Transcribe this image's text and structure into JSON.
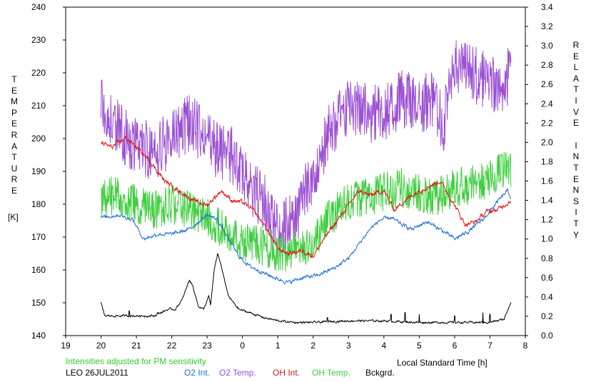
{
  "chart_data": {
    "type": "line",
    "left_axis_label": "TEMPERATURE",
    "left_axis_unit": "[K]",
    "right_axis_label": "RELATIVE INTENSITY",
    "xlabel": "Local Standard Time [h]",
    "note": "Intensities adjusted for PM sensitivity",
    "station_date": "LEO 26JUL2011",
    "x_ticks": [
      "19",
      "20",
      "21",
      "22",
      "23",
      "0",
      "1",
      "2",
      "3",
      "4",
      "5",
      "6",
      "7",
      "8"
    ],
    "y_left_ticks": [
      "140",
      "150",
      "160",
      "170",
      "180",
      "190",
      "200",
      "210",
      "220",
      "230",
      "240"
    ],
    "y_right_ticks": [
      "0.0",
      "0.2",
      "0.4",
      "0.6",
      "0.8",
      "1.0",
      "1.2",
      "1.4",
      "1.6",
      "1.8",
      "2.0",
      "2.2",
      "2.4",
      "2.6",
      "2.8",
      "3.0",
      "3.2",
      "3.4"
    ],
    "xlim": [
      19,
      32
    ],
    "ylim_left": [
      140,
      240
    ],
    "ylim_right": [
      0,
      3.4
    ],
    "series": [
      {
        "name": "O2 Int.",
        "color": "#1f6fd6",
        "axis": "right",
        "noise": 0.025,
        "x": [
          20.0,
          20.5,
          20.9,
          21.2,
          21.6,
          22.0,
          22.5,
          23.0,
          23.3,
          23.6,
          23.9,
          24.2,
          24.6,
          24.9,
          25.3,
          25.7,
          26.1,
          26.6,
          27.0,
          27.3,
          27.6,
          27.9,
          28.2,
          28.5,
          28.8,
          29.2,
          29.6,
          30.0,
          30.4,
          30.8,
          31.2,
          31.5,
          31.6
        ],
        "y": [
          1.22,
          1.25,
          1.2,
          1.0,
          1.05,
          1.05,
          1.1,
          1.25,
          1.2,
          1.0,
          0.82,
          0.72,
          0.65,
          0.6,
          0.55,
          0.6,
          0.62,
          0.7,
          0.8,
          0.95,
          1.1,
          1.2,
          1.22,
          1.15,
          1.1,
          1.18,
          1.1,
          1.0,
          1.08,
          1.2,
          1.38,
          1.5,
          1.42
        ]
      },
      {
        "name": "O2 Temp.",
        "color": "#9b4fd4",
        "axis": "left",
        "noise": 9,
        "x": [
          20.0,
          20.3,
          20.7,
          21.0,
          21.5,
          22.0,
          22.5,
          23.0,
          23.3,
          23.7,
          24.0,
          24.4,
          24.7,
          25.0,
          25.5,
          26.0,
          26.5,
          27.0,
          27.5,
          28.0,
          28.5,
          29.0,
          29.3,
          29.7,
          30.0,
          30.4,
          30.8,
          31.2,
          31.6
        ],
        "y": [
          212,
          205,
          200,
          198,
          196,
          200,
          205,
          200,
          196,
          195,
          190,
          183,
          180,
          172,
          175,
          190,
          203,
          210,
          208,
          207,
          212,
          210,
          212,
          205,
          222,
          220,
          218,
          215,
          220
        ]
      },
      {
        "name": "OH Int.",
        "color": "#e01414",
        "axis": "right",
        "noise": 0.03,
        "x": [
          20.0,
          20.3,
          20.7,
          21.0,
          21.4,
          21.8,
          22.2,
          22.6,
          23.0,
          23.4,
          23.7,
          24.0,
          24.3,
          24.7,
          25.0,
          25.3,
          25.7,
          26.0,
          26.3,
          26.7,
          27.0,
          27.3,
          27.6,
          28.0,
          28.3,
          28.6,
          29.0,
          29.3,
          29.6,
          30.0,
          30.3,
          30.6,
          30.9,
          31.2,
          31.6
        ],
        "y": [
          2.0,
          1.95,
          2.05,
          1.95,
          1.8,
          1.6,
          1.5,
          1.4,
          1.35,
          1.5,
          1.4,
          1.38,
          1.3,
          1.1,
          0.9,
          0.85,
          0.88,
          0.82,
          1.0,
          1.2,
          1.35,
          1.5,
          1.45,
          1.5,
          1.3,
          1.4,
          1.5,
          1.55,
          1.6,
          1.35,
          1.15,
          1.18,
          1.28,
          1.3,
          1.4
        ]
      },
      {
        "name": "OH Temp.",
        "color": "#3fcf3f",
        "axis": "left",
        "noise": 6,
        "x": [
          20.0,
          20.5,
          21.0,
          21.5,
          22.0,
          22.5,
          23.0,
          23.5,
          24.0,
          24.4,
          24.8,
          25.2,
          25.6,
          26.0,
          26.4,
          26.8,
          27.2,
          27.6,
          28.0,
          28.5,
          29.0,
          29.5,
          30.0,
          30.5,
          31.0,
          31.3,
          31.6
        ],
        "y": [
          182,
          183,
          180,
          178,
          180,
          178,
          176,
          172,
          168,
          168,
          166,
          165,
          167,
          168,
          175,
          180,
          182,
          182,
          184,
          185,
          183,
          182,
          185,
          186,
          188,
          190,
          190
        ]
      },
      {
        "name": "Bckgrd.",
        "color": "#000000",
        "axis": "left",
        "noise": 0.4,
        "x": [
          20.0,
          20.1,
          20.5,
          21.0,
          21.5,
          21.9,
          22.1,
          22.3,
          22.5,
          22.6,
          22.75,
          22.9,
          23.05,
          23.1,
          23.2,
          23.3,
          23.45,
          23.6,
          23.9,
          24.2,
          24.6,
          25.0,
          25.5,
          26.0,
          27.0,
          28.0,
          29.0,
          30.0,
          31.0,
          31.4,
          31.6
        ],
        "y": [
          150,
          146,
          146,
          146,
          146,
          148,
          148,
          151,
          157,
          155,
          149,
          148,
          152,
          149,
          160,
          165,
          159,
          152,
          148,
          147,
          145.5,
          144.5,
          144,
          144,
          144.5,
          144.5,
          144,
          144,
          144,
          145,
          150.5
        ]
      }
    ],
    "spikes": {
      "Bckgrd.": [
        [
          20.8,
          147.5
        ],
        [
          21.6,
          147
        ],
        [
          26.4,
          145.5
        ],
        [
          28.2,
          146.5
        ],
        [
          28.6,
          147
        ],
        [
          29.0,
          146.5
        ],
        [
          30.0,
          146
        ],
        [
          30.8,
          147
        ],
        [
          31.0,
          146.5
        ]
      ]
    }
  },
  "legend": {
    "o2_int": "O2 Int.",
    "o2_temp": "O2 Temp.",
    "oh_int": "OH Int.",
    "oh_temp": "OH Temp.",
    "bckgrd": "Bckgrd."
  },
  "colors": {
    "note": "#2ecc2e",
    "o2_int": "#1f6fd6",
    "o2_temp": "#9b4fd4",
    "oh_int": "#e01414",
    "oh_temp": "#3fcf3f",
    "bckgrd": "#000000"
  }
}
